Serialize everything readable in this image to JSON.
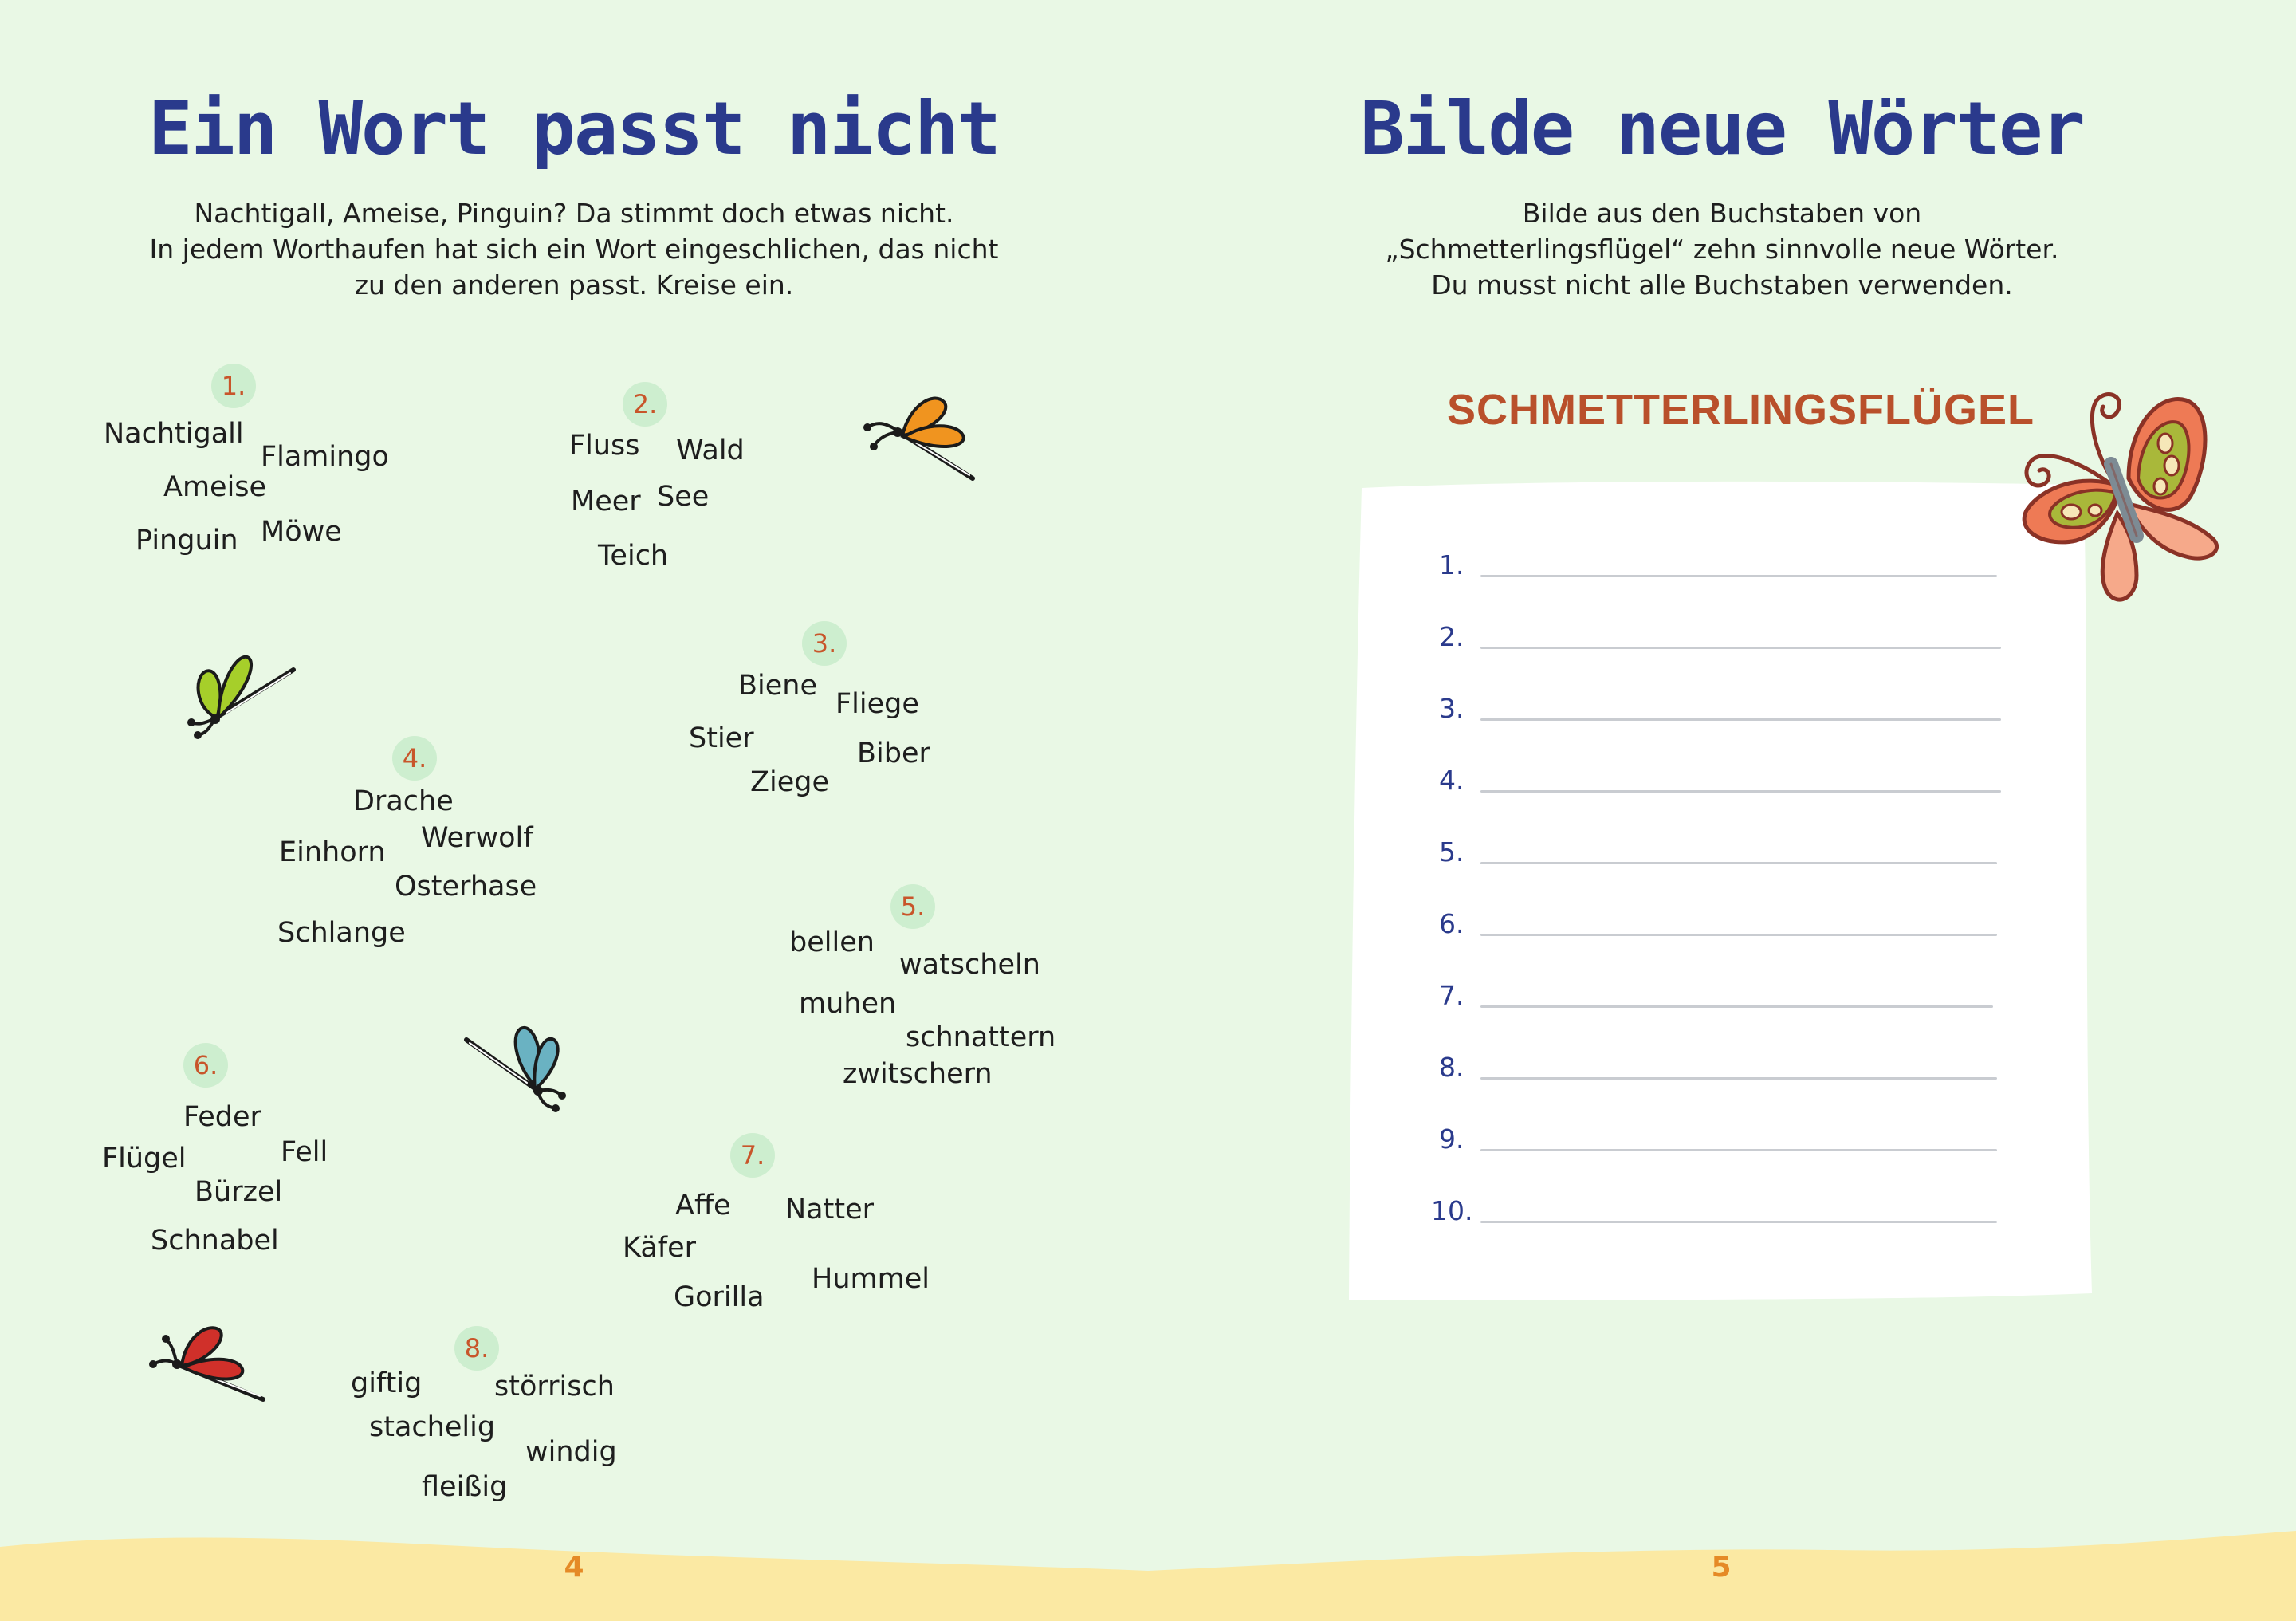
{
  "left": {
    "title": "Ein Wort passt nicht",
    "intro": [
      "Nachtigall, Ameise, Pinguin? Da stimmt doch etwas nicht.",
      "In jedem Worthaufen hat sich ein Wort eingeschlichen, das nicht",
      "zu den anderen passt. Kreise ein."
    ],
    "groups": [
      {
        "number": "1.",
        "words": [
          "Nachtigall",
          "Flamingo",
          "Ameise",
          "Pinguin",
          "Möwe"
        ]
      },
      {
        "number": "2.",
        "words": [
          "Fluss",
          "Wald",
          "Meer",
          "See",
          "Teich"
        ]
      },
      {
        "number": "3.",
        "words": [
          "Biene",
          "Fliege",
          "Stier",
          "Biber",
          "Ziege"
        ]
      },
      {
        "number": "4.",
        "words": [
          "Drache",
          "Werwolf",
          "Einhorn",
          "Osterhase",
          "Schlange"
        ]
      },
      {
        "number": "5.",
        "words": [
          "bellen",
          "watscheln",
          "muhen",
          "schnattern",
          "zwitschern"
        ]
      },
      {
        "number": "6.",
        "words": [
          "Feder",
          "Flügel",
          "Fell",
          "Bürzel",
          "Schnabel"
        ]
      },
      {
        "number": "7.",
        "words": [
          "Affe",
          "Natter",
          "Käfer",
          "Hummel",
          "Gorilla"
        ]
      },
      {
        "number": "8.",
        "words": [
          "giftig",
          "störrisch",
          "stachelig",
          "windig",
          "fleißig"
        ]
      }
    ],
    "page_number": "4",
    "icons": [
      "butterfly-orange-icon",
      "butterfly-green-icon",
      "butterfly-blue-icon",
      "butterfly-red-icon"
    ]
  },
  "right": {
    "title": "Bilde neue Wörter",
    "intro": [
      "Bilde aus den Buchstaben von",
      "„Schmetterlingsflügel“ zehn sinnvolle neue Wörter.",
      "Du musst nicht alle Buchstaben verwenden."
    ],
    "word": "SCHMETTERLINGSFLÜGEL",
    "lines": [
      "1.",
      "2.",
      "3.",
      "4.",
      "5.",
      "6.",
      "7.",
      "8.",
      "9.",
      "10."
    ],
    "page_number": "5",
    "icons": [
      "butterfly-large-icon"
    ]
  },
  "colors": {
    "background": "#e9f8e5",
    "title": "#2a3a8c",
    "accent": "#b9502b",
    "number_badge": "#cdeecf",
    "sand": "#fbe9a3"
  }
}
